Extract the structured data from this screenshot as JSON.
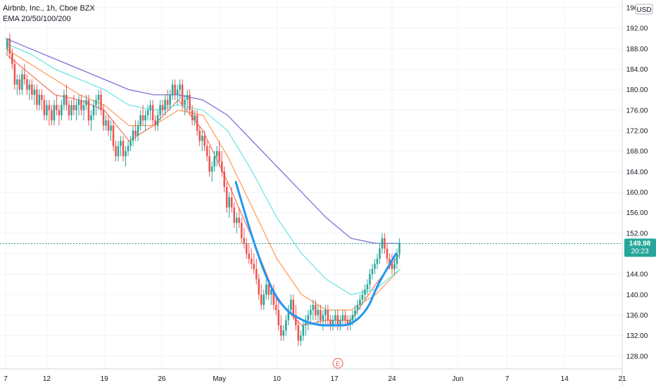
{
  "legend": {
    "line1": "Airbnb, Inc., 1h, Cboe BZX",
    "line2": "EMA 20/50/100/200"
  },
  "currency_label": "USD",
  "colors": {
    "up": "#26a69a",
    "down": "#ef5350",
    "ema20": "#f57c6a",
    "ema50": "#ff9e5e",
    "ema100": "#6fe7e0",
    "ema200": "#7e71d6",
    "cup": "#2196f3",
    "price_tag": "#26a69a",
    "grid": "#f0f3fa",
    "axis_text": "#131722"
  },
  "price_tag": {
    "price": "149.98",
    "countdown": "20:23"
  },
  "earnings_marker": "E",
  "chart_data": {
    "type": "candlestick",
    "title": "",
    "ylim": [
      125.5,
      197.5
    ],
    "y_ticks": [
      128,
      132,
      136,
      140,
      144,
      148,
      152,
      156,
      160,
      164,
      168,
      172,
      176,
      180,
      184,
      188,
      192,
      196
    ],
    "y_tick_labels": [
      "128.00",
      "132.00",
      "136.00",
      "140.00",
      "144.00",
      "148.00",
      "152.00",
      "156.00",
      "160.00",
      "164.00",
      "168.00",
      "172.00",
      "176.00",
      "180.00",
      "184.00",
      "188.00",
      "192.00",
      "196.00"
    ],
    "x_ticks": [
      {
        "label": "7",
        "x": 0
      },
      {
        "label": "12",
        "x": 5
      },
      {
        "label": "19",
        "x": 12
      },
      {
        "label": "26",
        "x": 19
      },
      {
        "label": "May",
        "x": 26
      },
      {
        "label": "10",
        "x": 33
      },
      {
        "label": "17",
        "x": 40
      },
      {
        "label": "24",
        "x": 47
      },
      {
        "label": "Jun",
        "x": 55
      },
      {
        "label": "7",
        "x": 61
      },
      {
        "label": "14",
        "x": 68
      },
      {
        "label": "21",
        "x": 75
      }
    ],
    "x_range": [
      0,
      75
    ],
    "candles": [
      [
        0.2,
        188,
        190,
        187,
        190
      ],
      [
        0.5,
        190,
        191,
        186,
        187
      ],
      [
        0.8,
        187,
        188,
        184,
        185
      ],
      [
        1.1,
        185,
        186,
        180,
        181
      ],
      [
        1.4,
        181,
        183,
        179,
        182
      ],
      [
        1.7,
        182,
        183,
        179,
        180
      ],
      [
        2.0,
        180,
        184,
        179,
        183
      ],
      [
        2.3,
        183,
        185,
        181,
        182
      ],
      [
        2.6,
        182,
        183,
        179,
        180
      ],
      [
        2.9,
        180,
        182,
        178,
        181
      ],
      [
        3.2,
        181,
        182,
        178,
        179
      ],
      [
        3.5,
        179,
        181,
        177,
        180
      ],
      [
        3.8,
        180,
        181,
        176,
        177
      ],
      [
        4.1,
        177,
        180,
        176,
        179
      ],
      [
        4.4,
        179,
        180,
        176,
        178
      ],
      [
        4.7,
        178,
        179,
        174,
        175
      ],
      [
        5.0,
        175,
        178,
        174,
        177
      ],
      [
        5.3,
        177,
        178,
        173,
        176
      ],
      [
        5.6,
        176,
        177,
        173,
        174
      ],
      [
        5.9,
        174,
        178,
        173,
        177
      ],
      [
        6.2,
        177,
        179,
        175,
        176
      ],
      [
        6.5,
        176,
        177,
        173,
        175
      ],
      [
        6.8,
        175,
        178,
        174,
        177
      ],
      [
        7.1,
        177,
        180,
        176,
        179
      ],
      [
        7.4,
        179,
        181,
        176,
        177
      ],
      [
        7.7,
        177,
        178,
        174,
        175
      ],
      [
        8.0,
        175,
        178,
        174,
        177
      ],
      [
        8.3,
        177,
        179,
        175,
        176
      ],
      [
        8.6,
        176,
        178,
        174,
        177
      ],
      [
        8.9,
        177,
        179,
        175,
        178
      ],
      [
        9.2,
        178,
        179,
        175,
        176
      ],
      [
        9.5,
        176,
        178,
        174,
        177
      ],
      [
        9.8,
        177,
        179,
        176,
        178
      ],
      [
        10.1,
        178,
        179,
        173,
        174
      ],
      [
        10.4,
        174,
        176,
        172,
        175
      ],
      [
        10.7,
        175,
        178,
        174,
        177
      ],
      [
        11.0,
        177,
        179,
        175,
        178
      ],
      [
        11.3,
        178,
        180,
        176,
        179
      ],
      [
        11.6,
        179,
        180,
        175,
        176
      ],
      [
        11.9,
        176,
        177,
        172,
        173
      ],
      [
        12.2,
        173,
        175,
        172,
        174
      ],
      [
        12.5,
        174,
        175,
        171,
        172
      ],
      [
        12.8,
        172,
        174,
        170,
        173
      ],
      [
        13.1,
        173,
        174,
        168,
        169
      ],
      [
        13.4,
        169,
        170,
        166,
        167
      ],
      [
        13.7,
        167,
        170,
        166,
        169
      ],
      [
        14.0,
        169,
        171,
        167,
        170
      ],
      [
        14.3,
        170,
        171,
        166,
        167
      ],
      [
        14.6,
        167,
        169,
        165,
        168
      ],
      [
        14.9,
        168,
        170,
        167,
        169
      ],
      [
        15.2,
        169,
        171,
        168,
        170
      ],
      [
        15.5,
        170,
        173,
        169,
        172
      ],
      [
        15.8,
        172,
        174,
        170,
        171
      ],
      [
        16.1,
        171,
        174,
        170,
        173
      ],
      [
        16.4,
        173,
        176,
        172,
        175
      ],
      [
        16.7,
        175,
        177,
        173,
        174
      ],
      [
        17.0,
        174,
        176,
        172,
        175
      ],
      [
        17.3,
        175,
        177,
        174,
        176
      ],
      [
        17.6,
        176,
        178,
        174,
        177
      ],
      [
        17.9,
        177,
        178,
        173,
        174
      ],
      [
        18.2,
        174,
        175,
        172,
        173
      ],
      [
        18.5,
        173,
        176,
        172,
        175
      ],
      [
        18.8,
        175,
        178,
        174,
        177
      ],
      [
        19.1,
        177,
        178,
        175,
        176
      ],
      [
        19.4,
        176,
        179,
        175,
        178
      ],
      [
        19.7,
        178,
        180,
        176,
        177
      ],
      [
        20.0,
        177,
        180,
        176,
        179
      ],
      [
        20.3,
        179,
        182,
        178,
        181
      ],
      [
        20.6,
        181,
        182,
        178,
        179
      ],
      [
        20.9,
        179,
        181,
        177,
        180
      ],
      [
        21.2,
        180,
        182,
        178,
        181
      ],
      [
        21.5,
        181,
        182,
        176,
        177
      ],
      [
        21.8,
        177,
        179,
        175,
        178
      ],
      [
        22.1,
        178,
        180,
        176,
        179
      ],
      [
        22.4,
        179,
        180,
        175,
        176
      ],
      [
        22.7,
        176,
        177,
        173,
        174
      ],
      [
        23.0,
        174,
        176,
        173,
        175
      ],
      [
        23.3,
        175,
        176,
        171,
        172
      ],
      [
        23.6,
        172,
        173,
        169,
        170
      ],
      [
        23.9,
        170,
        172,
        168,
        171
      ],
      [
        24.2,
        171,
        172,
        168,
        169
      ],
      [
        24.5,
        169,
        170,
        166,
        167
      ],
      [
        24.8,
        167,
        169,
        163,
        164
      ],
      [
        25.1,
        164,
        166,
        162,
        165
      ],
      [
        25.4,
        165,
        168,
        164,
        167
      ],
      [
        25.7,
        167,
        169,
        165,
        168
      ],
      [
        26.0,
        168,
        170,
        165,
        166
      ],
      [
        26.3,
        166,
        168,
        163,
        164
      ],
      [
        26.6,
        164,
        165,
        160,
        161
      ],
      [
        26.9,
        161,
        162,
        156,
        157
      ],
      [
        27.2,
        157,
        160,
        155,
        159
      ],
      [
        27.5,
        159,
        161,
        156,
        157
      ],
      [
        27.8,
        157,
        158,
        153,
        154
      ],
      [
        28.1,
        154,
        156,
        152,
        155
      ],
      [
        28.4,
        155,
        157,
        153,
        154
      ],
      [
        28.7,
        154,
        155,
        150,
        151
      ],
      [
        29.0,
        151,
        153,
        149,
        150
      ],
      [
        29.3,
        150,
        151,
        147,
        148
      ],
      [
        29.6,
        148,
        150,
        146,
        147
      ],
      [
        29.9,
        147,
        149,
        145,
        146
      ],
      [
        30.2,
        146,
        148,
        144,
        145
      ],
      [
        30.5,
        145,
        147,
        142,
        143
      ],
      [
        30.8,
        143,
        144,
        139,
        140
      ],
      [
        31.1,
        140,
        142,
        137,
        138
      ],
      [
        31.4,
        138,
        141,
        137,
        140
      ],
      [
        31.7,
        140,
        143,
        139,
        142
      ],
      [
        32.0,
        142,
        143,
        139,
        140
      ],
      [
        32.3,
        140,
        142,
        138,
        141
      ],
      [
        32.6,
        141,
        142,
        137,
        138
      ],
      [
        32.9,
        138,
        140,
        136,
        137
      ],
      [
        33.2,
        137,
        139,
        133,
        134
      ],
      [
        33.5,
        134,
        136,
        131,
        132
      ],
      [
        33.8,
        132,
        134,
        131,
        133
      ],
      [
        34.1,
        133,
        136,
        132,
        135
      ],
      [
        34.4,
        135,
        138,
        134,
        137
      ],
      [
        34.7,
        137,
        140,
        136,
        139
      ],
      [
        35.0,
        139,
        140,
        135,
        136
      ],
      [
        35.3,
        136,
        138,
        133,
        134
      ],
      [
        35.6,
        134,
        135,
        130,
        131
      ],
      [
        35.9,
        131,
        133,
        130,
        132
      ],
      [
        36.2,
        132,
        135,
        131,
        134
      ],
      [
        36.5,
        134,
        136,
        132,
        135
      ],
      [
        36.8,
        135,
        137,
        133,
        136
      ],
      [
        37.1,
        136,
        138,
        134,
        137
      ],
      [
        37.4,
        137,
        139,
        135,
        138
      ],
      [
        37.7,
        138,
        139,
        135,
        136
      ],
      [
        38.0,
        136,
        138,
        134,
        137
      ],
      [
        38.3,
        137,
        138,
        134,
        135
      ],
      [
        38.6,
        135,
        137,
        133,
        136
      ],
      [
        38.9,
        136,
        138,
        134,
        137
      ],
      [
        39.2,
        137,
        138,
        134,
        135
      ],
      [
        39.5,
        135,
        136,
        133,
        134
      ],
      [
        39.8,
        134,
        136,
        133,
        135
      ],
      [
        40.1,
        135,
        137,
        134,
        136
      ],
      [
        40.4,
        136,
        137,
        133,
        134
      ],
      [
        40.7,
        134,
        136,
        133,
        135
      ],
      [
        41.0,
        135,
        137,
        134,
        136
      ],
      [
        41.3,
        136,
        137,
        134,
        135
      ],
      [
        41.6,
        135,
        136,
        133,
        134
      ],
      [
        41.9,
        134,
        136,
        133,
        135
      ],
      [
        42.2,
        135,
        137,
        134,
        136
      ],
      [
        42.5,
        136,
        138,
        135,
        137
      ],
      [
        42.8,
        137,
        139,
        136,
        138
      ],
      [
        43.1,
        138,
        140,
        137,
        139
      ],
      [
        43.4,
        139,
        141,
        138,
        140
      ],
      [
        43.7,
        140,
        142,
        139,
        141
      ],
      [
        44.0,
        141,
        143,
        140,
        142
      ],
      [
        44.3,
        142,
        145,
        141,
        144
      ],
      [
        44.6,
        144,
        146,
        143,
        145
      ],
      [
        44.9,
        145,
        147,
        144,
        146
      ],
      [
        45.2,
        146,
        148,
        145,
        147
      ],
      [
        45.5,
        147,
        150,
        146,
        149
      ],
      [
        45.8,
        149,
        152,
        148,
        151
      ],
      [
        46.1,
        151,
        152,
        148,
        149
      ],
      [
        46.4,
        149,
        150,
        146,
        147
      ],
      [
        46.7,
        147,
        148,
        145,
        146
      ],
      [
        47.0,
        146,
        148,
        144,
        145
      ],
      [
        47.3,
        145,
        147,
        144,
        146
      ],
      [
        47.6,
        146,
        149,
        145,
        148
      ],
      [
        47.9,
        148,
        151,
        147,
        150
      ]
    ],
    "ema_series": [
      {
        "name": "EMA 20",
        "color_key": "ema20",
        "points": [
          [
            0,
            187
          ],
          [
            3,
            183
          ],
          [
            6,
            179
          ],
          [
            9,
            178
          ],
          [
            12,
            176
          ],
          [
            15,
            170
          ],
          [
            18,
            173
          ],
          [
            21,
            178
          ],
          [
            24,
            172
          ],
          [
            27,
            162
          ],
          [
            30,
            151
          ],
          [
            33,
            139
          ],
          [
            36,
            134
          ],
          [
            39,
            135
          ],
          [
            42,
            135
          ],
          [
            45,
            142
          ],
          [
            48,
            148
          ]
        ]
      },
      {
        "name": "EMA 50",
        "color_key": "ema50",
        "points": [
          [
            0,
            188
          ],
          [
            3,
            185
          ],
          [
            6,
            182
          ],
          [
            9,
            179
          ],
          [
            12,
            177
          ],
          [
            15,
            173
          ],
          [
            18,
            173
          ],
          [
            21,
            176
          ],
          [
            24,
            175
          ],
          [
            27,
            167
          ],
          [
            30,
            157
          ],
          [
            33,
            147
          ],
          [
            36,
            140
          ],
          [
            39,
            137
          ],
          [
            42,
            137
          ],
          [
            45,
            140
          ],
          [
            48,
            145
          ]
        ]
      },
      {
        "name": "EMA 100",
        "color_key": "ema100",
        "points": [
          [
            0,
            189
          ],
          [
            3,
            187
          ],
          [
            6,
            184
          ],
          [
            9,
            182
          ],
          [
            12,
            180
          ],
          [
            15,
            177
          ],
          [
            18,
            176
          ],
          [
            21,
            177
          ],
          [
            24,
            176
          ],
          [
            27,
            172
          ],
          [
            30,
            164
          ],
          [
            33,
            155
          ],
          [
            36,
            148
          ],
          [
            39,
            143
          ],
          [
            42,
            140
          ],
          [
            45,
            141
          ],
          [
            48,
            145
          ]
        ]
      },
      {
        "name": "EMA 200",
        "color_key": "ema200",
        "points": [
          [
            0,
            190
          ],
          [
            3,
            188
          ],
          [
            6,
            186
          ],
          [
            9,
            184
          ],
          [
            12,
            182
          ],
          [
            15,
            180
          ],
          [
            18,
            179
          ],
          [
            21,
            179
          ],
          [
            24,
            178
          ],
          [
            27,
            175
          ],
          [
            30,
            170
          ],
          [
            33,
            165
          ],
          [
            36,
            160
          ],
          [
            39,
            155
          ],
          [
            42,
            151
          ],
          [
            45,
            150
          ],
          [
            48,
            150
          ]
        ]
      }
    ],
    "cup_curve": [
      [
        28,
        162
      ],
      [
        30,
        151
      ],
      [
        32,
        142
      ],
      [
        34,
        137
      ],
      [
        36,
        135
      ],
      [
        38,
        134
      ],
      [
        40,
        134
      ],
      [
        42,
        134
      ],
      [
        44,
        137
      ],
      [
        45,
        141
      ],
      [
        46,
        144
      ],
      [
        47.5,
        148
      ]
    ],
    "last_price": 149.98
  }
}
